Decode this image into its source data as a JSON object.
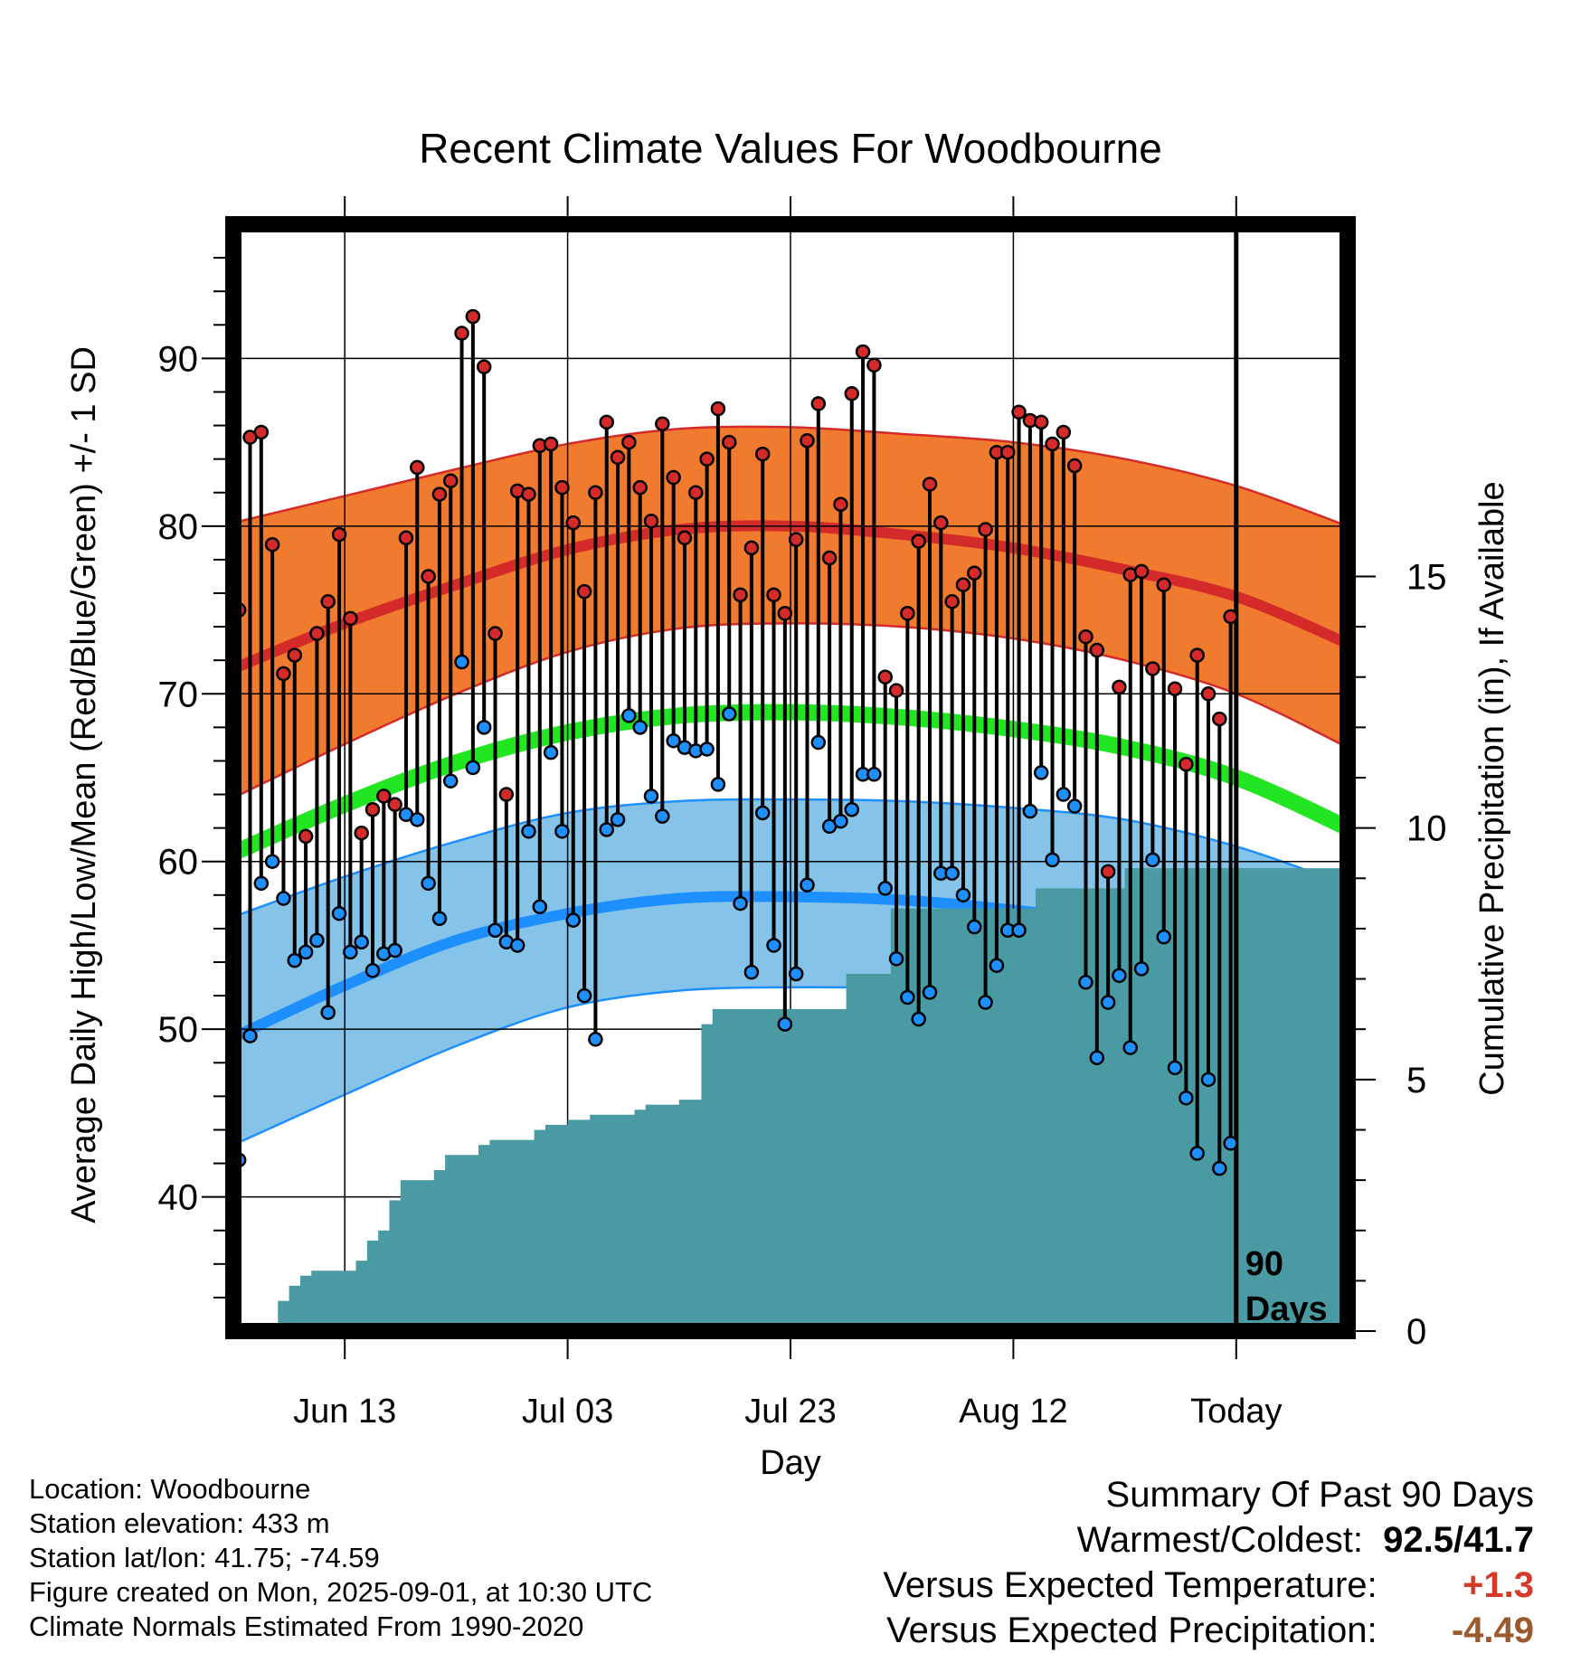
{
  "chart_data": {
    "type": "line",
    "title": "Recent Climate Values For Woodbourne",
    "xlabel": "Day",
    "ylabel": "Average Daily High/Low/Mean (Red/Blue/Green) +/- 1 SD",
    "y2label": "Cumulative Precipitation (in), If Available",
    "x_tick_labels": [
      "Jun 13",
      "Jul 03",
      "Jul 23",
      "Aug 12",
      "Today"
    ],
    "x_tick_days": [
      10,
      30,
      50,
      70,
      90
    ],
    "ylim": [
      32,
      98
    ],
    "y_ticks": [
      40,
      50,
      60,
      70,
      80,
      90
    ],
    "y2lim": [
      0,
      22
    ],
    "y2_ticks": [
      0,
      5,
      10,
      15
    ],
    "xlim": [
      0,
      100
    ],
    "today_marker_label": [
      "90",
      "Days"
    ],
    "grid": true,
    "colors": {
      "high_band": "#f07a2e",
      "high_line": "#d42a2a",
      "low_band": "#85c3e8",
      "low_line": "#1e8fff",
      "mean_line": "#22e622",
      "precip": "#4a9aa3",
      "high_dot": "#d42a2a",
      "low_dot": "#1e8fff"
    },
    "normals": {
      "days": [
        0,
        10,
        20,
        30,
        40,
        50,
        60,
        70,
        80,
        90,
        100
      ],
      "high_mean": [
        71.5,
        74.2,
        76.5,
        78.6,
        79.8,
        80.0,
        79.5,
        78.7,
        77.4,
        75.8,
        73.0
      ],
      "high_upper": [
        80.2,
        81.8,
        83.4,
        84.9,
        85.8,
        85.9,
        85.5,
        85.0,
        84.0,
        82.4,
        80.0
      ],
      "high_lower": [
        63.8,
        67.0,
        70.0,
        72.5,
        73.9,
        74.2,
        74.0,
        73.3,
        72.0,
        70.0,
        66.8
      ],
      "low_mean": [
        49.5,
        52.6,
        55.3,
        56.9,
        57.8,
        57.9,
        57.7,
        57.1,
        56.2,
        54.3,
        51.0
      ],
      "low_upper": [
        56.7,
        59.1,
        61.2,
        62.9,
        63.6,
        63.7,
        63.6,
        63.2,
        62.5,
        60.9,
        58.6
      ],
      "low_lower": [
        43.1,
        46.1,
        49.0,
        51.3,
        52.3,
        52.5,
        52.4,
        51.9,
        50.4,
        48.2,
        45.0
      ],
      "mean": [
        60.5,
        63.4,
        65.9,
        67.7,
        68.7,
        68.9,
        68.6,
        67.9,
        66.8,
        65.0,
        62.0
      ]
    },
    "series": [
      {
        "name": "High",
        "days": [
          0,
          1,
          2,
          3,
          4,
          5,
          6,
          7,
          8,
          9,
          10,
          11,
          12,
          13,
          14,
          15,
          16,
          17,
          18,
          19,
          20,
          21,
          22,
          23,
          24,
          25,
          26,
          27,
          28,
          29,
          30,
          31,
          32,
          33,
          34,
          35,
          36,
          37,
          38,
          39,
          40,
          41,
          42,
          43,
          44,
          45,
          46,
          47,
          48,
          49,
          50,
          51,
          52,
          53,
          54,
          55,
          56,
          57,
          58,
          59,
          60,
          61,
          62,
          63,
          64,
          65,
          66,
          67,
          68,
          69,
          70,
          71,
          72,
          73,
          74,
          75,
          76,
          77,
          78,
          79,
          80,
          81,
          82,
          83,
          84,
          85,
          86,
          87,
          88,
          89
        ],
        "values": [
          75.0,
          85.3,
          85.6,
          78.9,
          71.2,
          72.3,
          61.5,
          73.6,
          75.5,
          79.5,
          74.5,
          61.7,
          63.1,
          63.9,
          63.4,
          79.3,
          83.5,
          77.0,
          81.9,
          82.7,
          91.5,
          92.5,
          89.5,
          73.6,
          64.0,
          82.1,
          81.9,
          84.8,
          84.9,
          82.3,
          80.2,
          76.1,
          82.0,
          86.2,
          84.1,
          85.0,
          82.3,
          80.3,
          86.1,
          82.9,
          79.3,
          82.0,
          84.0,
          87.0,
          85.0,
          75.9,
          78.7,
          84.3,
          75.9,
          74.8,
          79.2,
          85.1,
          87.3,
          78.1,
          81.3,
          87.9,
          90.4,
          89.6,
          71.0,
          70.2,
          74.8,
          79.1,
          82.5,
          80.2,
          75.5,
          76.5,
          77.2,
          79.8,
          84.4,
          84.4,
          86.8,
          86.3,
          86.2,
          84.9,
          85.6,
          83.6,
          73.4,
          72.6,
          59.4,
          70.4,
          77.1,
          77.3,
          71.5,
          76.5,
          70.3,
          65.8,
          72.3,
          70.0,
          68.5,
          74.6
        ]
      },
      {
        "name": "Low",
        "days": [
          0,
          1,
          2,
          3,
          4,
          5,
          6,
          7,
          8,
          9,
          10,
          11,
          12,
          13,
          14,
          15,
          16,
          17,
          18,
          19,
          20,
          21,
          22,
          23,
          24,
          25,
          26,
          27,
          28,
          29,
          30,
          31,
          32,
          33,
          34,
          35,
          36,
          37,
          38,
          39,
          40,
          41,
          42,
          43,
          44,
          45,
          46,
          47,
          48,
          49,
          50,
          51,
          52,
          53,
          54,
          55,
          56,
          57,
          58,
          59,
          60,
          61,
          62,
          63,
          64,
          65,
          66,
          67,
          68,
          69,
          70,
          71,
          72,
          73,
          74,
          75,
          76,
          77,
          78,
          79,
          80,
          81,
          82,
          83,
          84,
          85,
          86,
          87,
          88,
          89
        ],
        "values": [
          42.2,
          49.6,
          58.7,
          60.0,
          57.8,
          54.1,
          54.6,
          55.3,
          51.0,
          56.9,
          54.6,
          55.2,
          53.5,
          54.5,
          54.7,
          62.8,
          62.5,
          58.7,
          56.6,
          64.8,
          71.9,
          65.6,
          68.0,
          55.9,
          55.2,
          55.0,
          61.8,
          57.3,
          66.5,
          61.8,
          56.5,
          52.0,
          49.4,
          61.9,
          62.5,
          68.7,
          68.0,
          63.9,
          62.7,
          67.2,
          66.8,
          66.6,
          66.7,
          64.6,
          68.8,
          57.5,
          53.4,
          62.9,
          55.0,
          50.3,
          53.3,
          58.6,
          67.1,
          62.1,
          62.4,
          63.1,
          65.2,
          65.2,
          58.4,
          54.2,
          51.9,
          50.6,
          52.2,
          59.3,
          59.3,
          58.0,
          56.1,
          51.6,
          53.8,
          55.9,
          55.9,
          63.0,
          65.3,
          60.1,
          64.0,
          63.3,
          52.8,
          48.3,
          51.6,
          53.2,
          48.9,
          53.6,
          60.1,
          55.5,
          47.7,
          45.9,
          42.6,
          47.0,
          41.7,
          43.2
        ]
      }
    ],
    "precipitation": {
      "days": [
        3.5,
        4,
        5,
        6,
        7,
        8,
        9,
        10,
        11,
        12,
        13,
        14,
        15,
        16,
        17,
        18,
        19,
        20,
        21,
        22,
        23,
        24,
        25,
        26,
        27,
        28,
        29,
        30,
        31,
        32,
        33,
        34,
        35,
        36,
        37,
        38,
        39,
        40,
        41,
        42,
        43,
        44,
        45,
        46,
        47,
        48,
        49,
        50,
        51,
        52,
        53,
        54,
        55,
        56,
        57,
        58,
        59,
        60,
        61,
        62,
        63,
        64,
        65,
        66,
        67,
        68,
        69,
        70,
        71,
        72,
        73,
        74,
        75,
        76,
        77,
        78,
        79,
        80,
        81,
        82,
        83,
        84,
        85,
        86,
        87,
        88,
        89,
        90,
        100
      ],
      "values": [
        0.0,
        0.6,
        0.9,
        1.1,
        1.2,
        1.2,
        1.2,
        1.2,
        1.4,
        1.8,
        2.0,
        2.6,
        3.0,
        3.0,
        3.0,
        3.2,
        3.5,
        3.5,
        3.5,
        3.7,
        3.8,
        3.8,
        3.8,
        3.8,
        4.0,
        4.1,
        4.1,
        4.2,
        4.2,
        4.3,
        4.3,
        4.3,
        4.3,
        4.4,
        4.5,
        4.5,
        4.5,
        4.6,
        4.6,
        6.1,
        6.4,
        6.4,
        6.4,
        6.4,
        6.4,
        6.4,
        6.4,
        6.4,
        6.4,
        6.4,
        6.4,
        6.4,
        7.1,
        7.1,
        7.1,
        7.1,
        8.4,
        8.4,
        8.4,
        8.4,
        8.4,
        8.4,
        8.4,
        8.4,
        8.4,
        8.4,
        8.4,
        8.4,
        8.4,
        8.8,
        8.8,
        8.8,
        8.8,
        8.8,
        8.8,
        8.8,
        8.8,
        9.2,
        9.2,
        9.2,
        9.2,
        9.2,
        9.2,
        9.2,
        9.2,
        9.2,
        9.2,
        9.2,
        9.2
      ]
    }
  },
  "info": {
    "location": "Location: Woodbourne",
    "elevation": "Station elevation: 433 m",
    "latlon": "Station lat/lon: 41.75; -74.59",
    "created": "Figure created on Mon, 2025-09-01, at 10:30 UTC",
    "normals": "Climate Normals Estimated From 1990-2020"
  },
  "summary": {
    "title": "Summary Of Past 90 Days",
    "warmest_label": "Warmest/Coldest:",
    "warmest_value": "92.5/41.7",
    "temp_label": "Versus Expected Temperature:",
    "temp_value": "+1.3",
    "precip_label": "Versus Expected Precipitation:",
    "precip_value": "-4.49"
  }
}
